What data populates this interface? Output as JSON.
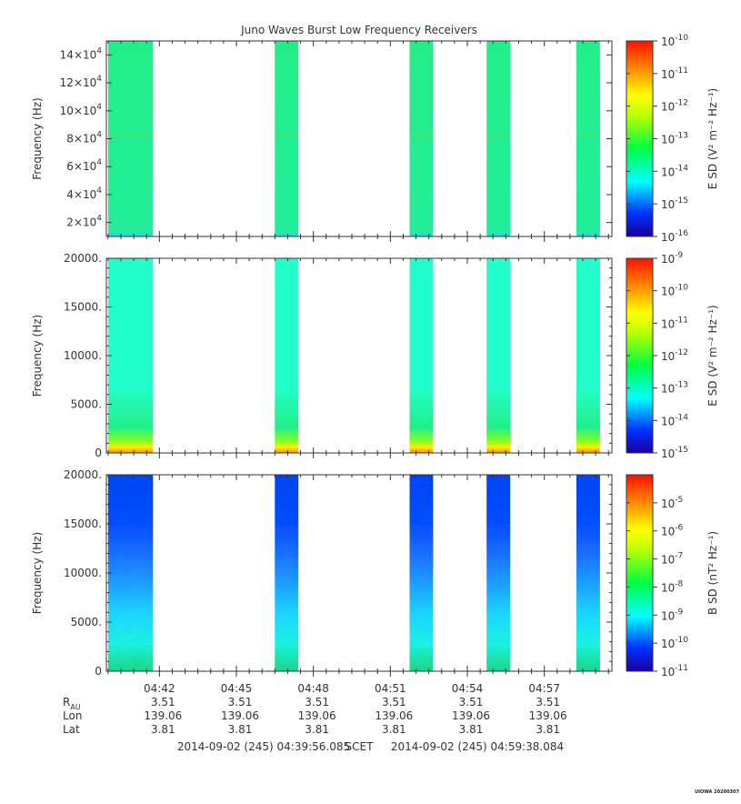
{
  "chart_data": [
    {
      "type": "heatmap",
      "title": "Juno Waves Burst Low Frequency Receivers",
      "ylabel": "Frequency (Hz)",
      "ylim": [
        10000,
        150000
      ],
      "y_ticks": [
        20000,
        40000,
        60000,
        80000,
        100000,
        120000,
        140000
      ],
      "y_tick_labels": [
        {
          "mant": "2×10",
          "exp": "4"
        },
        {
          "mant": "4×10",
          "exp": "4"
        },
        {
          "mant": "6×10",
          "exp": "4"
        },
        {
          "mant": "8×10",
          "exp": "4"
        },
        {
          "mant": "10×10",
          "exp": "4"
        },
        {
          "mant": "12×10",
          "exp": "4"
        },
        {
          "mant": "14×10",
          "exp": "4"
        }
      ],
      "colorbar": {
        "label": "E SD (V² m⁻² Hz⁻¹)",
        "scale": "log",
        "range_exp": [
          -16,
          -10
        ],
        "tick_exps": [
          -16,
          -15,
          -14,
          -13,
          -12,
          -11,
          -10
        ]
      },
      "data_blocks_time": [
        [
          "04:40:00",
          "04:41:45"
        ],
        [
          "04:46:30",
          "04:47:25"
        ],
        [
          "04:51:45",
          "04:52:40"
        ],
        [
          "04:54:45",
          "04:55:40"
        ],
        [
          "04:58:15",
          "04:59:10"
        ]
      ],
      "block_colors": {
        "base": "#22ee88",
        "bottom": "#33dddd",
        "line_at_hz": 83000
      },
      "cell_level_exp": -14.2
    },
    {
      "type": "heatmap",
      "ylabel": "Frequency (Hz)",
      "ylim": [
        0,
        20000
      ],
      "y_ticks": [
        0,
        5000,
        10000,
        15000,
        20000
      ],
      "y_tick_labels": [
        "0",
        "5000.",
        "10000.",
        "15000.",
        "20000."
      ],
      "colorbar": {
        "label": "E SD (V² m⁻² Hz⁻¹)",
        "scale": "log",
        "range_exp": [
          -15,
          -9
        ],
        "tick_exps": [
          -15,
          -14,
          -13,
          -12,
          -11,
          -10,
          -9
        ]
      },
      "data_blocks_time": [
        [
          "04:40:00",
          "04:41:45"
        ],
        [
          "04:46:30",
          "04:47:25"
        ],
        [
          "04:51:45",
          "04:52:40"
        ],
        [
          "04:54:45",
          "04:55:40"
        ],
        [
          "04:58:15",
          "04:59:10"
        ]
      ],
      "cell_level_exp": -12.8
    },
    {
      "type": "heatmap",
      "ylabel": "Frequency (Hz)",
      "ylim": [
        0,
        20000
      ],
      "y_ticks": [
        0,
        5000,
        10000,
        15000,
        20000
      ],
      "y_tick_labels": [
        "0",
        "5000.",
        "10000.",
        "15000.",
        "20000."
      ],
      "colorbar": {
        "label": "B SD (nT² Hz⁻¹)",
        "scale": "log",
        "range_exp": [
          -11,
          -4
        ],
        "tick_exps": [
          -11,
          -10,
          -9,
          -8,
          -7,
          -6,
          -5
        ]
      },
      "data_blocks_time": [
        [
          "04:40:00",
          "04:41:45"
        ],
        [
          "04:46:30",
          "04:47:25"
        ],
        [
          "04:51:45",
          "04:52:40"
        ],
        [
          "04:54:45",
          "04:55:40"
        ],
        [
          "04:58:15",
          "04:59:10"
        ]
      ],
      "cell_level_exp": -10.3
    }
  ],
  "x_axis": {
    "range": [
      "04:39:56",
      "04:59:38"
    ],
    "tick_times": [
      "04:42",
      "04:45",
      "04:48",
      "04:51",
      "04:54",
      "04:57"
    ],
    "tick_labels": [
      "04:42",
      "04:45",
      "04:48",
      "04:51",
      "04:54",
      "04:57"
    ]
  },
  "ephemeris": {
    "rows": [
      {
        "label": "R",
        "sub": "AU",
        "values": [
          "3.51",
          "3.51",
          "3.51",
          "3.51",
          "3.51",
          "3.51"
        ]
      },
      {
        "label": "Lon",
        "sub": "",
        "values": [
          "139.06",
          "139.06",
          "139.06",
          "139.06",
          "139.06",
          "139.06"
        ]
      },
      {
        "label": "Lat",
        "sub": "",
        "values": [
          "3.81",
          "3.81",
          "3.81",
          "3.81",
          "3.81",
          "3.81"
        ]
      }
    ]
  },
  "footer": {
    "start": "2014-09-02 (245) 04:39:56.085",
    "scet": "SCET",
    "end": "2014-09-02 (245) 04:59:38.084",
    "credit": "UIOWA 20200307"
  }
}
